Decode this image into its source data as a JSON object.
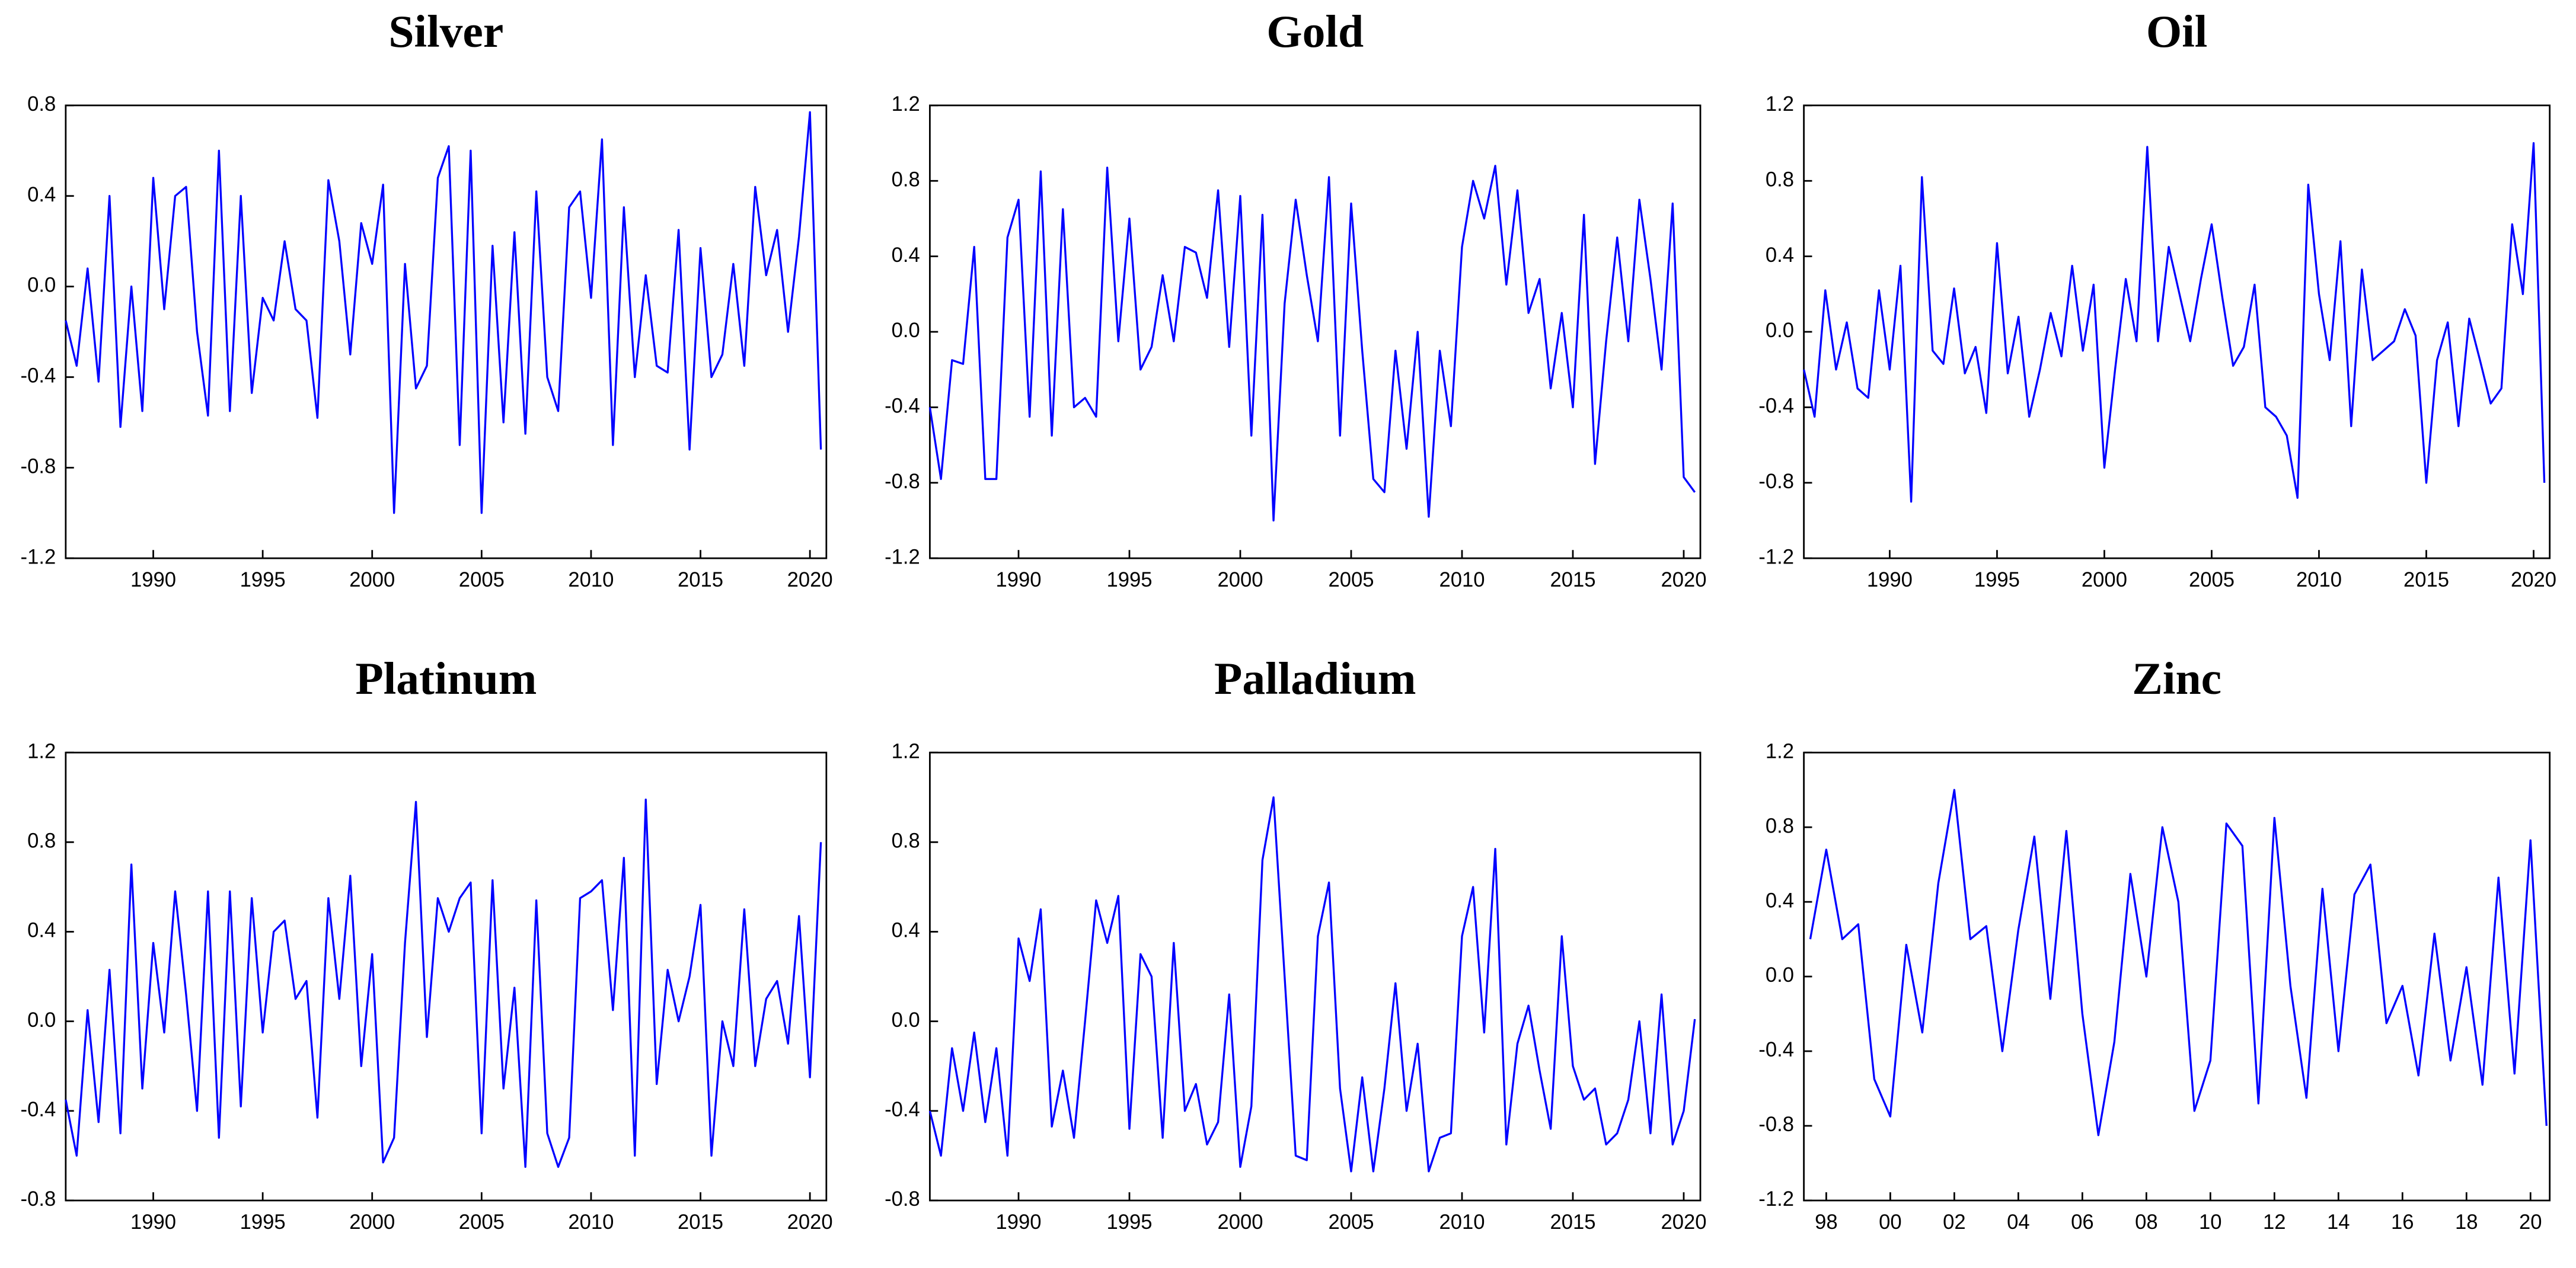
{
  "chart_data": [
    {
      "type": "line",
      "title": "Silver",
      "color": "#0000ff",
      "x": [
        1986,
        1986.5,
        1987,
        1987.5,
        1988,
        1988.5,
        1989,
        1989.5,
        1990,
        1990.5,
        1991,
        1991.5,
        1992,
        1992.5,
        1993,
        1993.5,
        1994,
        1994.5,
        1995,
        1995.5,
        1996,
        1996.5,
        1997,
        1997.5,
        1998,
        1998.5,
        1999,
        1999.5,
        2000,
        2000.5,
        2001,
        2001.5,
        2002,
        2002.5,
        2003,
        2003.5,
        2004,
        2004.5,
        2005,
        2005.5,
        2006,
        2006.5,
        2007,
        2007.5,
        2008,
        2008.5,
        2009,
        2009.5,
        2010,
        2010.5,
        2011,
        2011.5,
        2012,
        2012.5,
        2013,
        2013.5,
        2014,
        2014.5,
        2015,
        2015.5,
        2016,
        2016.5,
        2017,
        2017.5,
        2018,
        2018.5,
        2019,
        2019.5,
        2020,
        2020.5
      ],
      "values": [
        -0.15,
        -0.35,
        0.08,
        -0.42,
        0.4,
        -0.62,
        0.0,
        -0.55,
        0.48,
        -0.1,
        0.4,
        0.44,
        -0.2,
        -0.57,
        0.6,
        -0.55,
        0.4,
        -0.47,
        -0.05,
        -0.15,
        0.2,
        -0.1,
        -0.15,
        -0.58,
        0.47,
        0.2,
        -0.3,
        0.28,
        0.1,
        0.45,
        -1.0,
        0.1,
        -0.45,
        -0.35,
        0.48,
        0.62,
        -0.7,
        0.6,
        -1.0,
        0.18,
        -0.6,
        0.24,
        -0.65,
        0.42,
        -0.4,
        -0.55,
        0.35,
        0.42,
        -0.05,
        0.65,
        -0.7,
        0.35,
        -0.4,
        0.05,
        -0.35,
        -0.38,
        0.25,
        -0.72,
        0.17,
        -0.4,
        -0.3,
        0.1,
        -0.35,
        0.44,
        0.05,
        0.25,
        -0.2,
        0.22,
        0.77,
        -0.72
      ],
      "xlim": [
        1986,
        2020.75
      ],
      "xticks": [
        1990,
        1995,
        2000,
        2005,
        2010,
        2015,
        2020
      ],
      "ylim": [
        -1.2,
        0.8
      ],
      "yticks": [
        -1.2,
        -0.8,
        -0.4,
        {
          "value": 0,
          "label": "0.0"
        },
        0.4,
        0.8
      ]
    },
    {
      "type": "line",
      "title": "Gold",
      "color": "#0000ff",
      "x": [
        1986,
        1986.5,
        1987,
        1987.5,
        1988,
        1988.5,
        1989,
        1989.5,
        1990,
        1990.5,
        1991,
        1991.5,
        1992,
        1992.5,
        1993,
        1993.5,
        1994,
        1994.5,
        1995,
        1995.5,
        1996,
        1996.5,
        1997,
        1997.5,
        1998,
        1998.5,
        1999,
        1999.5,
        2000,
        2000.5,
        2001,
        2001.5,
        2002,
        2002.5,
        2003,
        2003.5,
        2004,
        2004.5,
        2005,
        2005.5,
        2006,
        2006.5,
        2007,
        2007.5,
        2008,
        2008.5,
        2009,
        2009.5,
        2010,
        2010.5,
        2011,
        2011.5,
        2012,
        2012.5,
        2013,
        2013.5,
        2014,
        2014.5,
        2015,
        2015.5,
        2016,
        2016.5,
        2017,
        2017.5,
        2018,
        2018.5,
        2019,
        2019.5,
        2020,
        2020.5
      ],
      "values": [
        -0.4,
        -0.78,
        -0.15,
        -0.17,
        0.45,
        -0.78,
        -0.78,
        0.5,
        0.7,
        -0.45,
        0.85,
        -0.55,
        0.65,
        -0.4,
        -0.35,
        -0.45,
        0.87,
        -0.05,
        0.6,
        -0.2,
        -0.08,
        0.3,
        -0.05,
        0.45,
        0.42,
        0.18,
        0.75,
        -0.08,
        0.72,
        -0.55,
        0.62,
        -1.0,
        0.15,
        0.7,
        0.3,
        -0.05,
        0.82,
        -0.55,
        0.68,
        -0.1,
        -0.78,
        -0.85,
        -0.1,
        -0.62,
        0.0,
        -0.98,
        -0.1,
        -0.5,
        0.45,
        0.8,
        0.6,
        0.88,
        0.25,
        0.75,
        0.1,
        0.28,
        -0.3,
        0.1,
        -0.4,
        0.62,
        -0.7,
        -0.05,
        0.5,
        -0.05,
        0.7,
        0.28,
        -0.2,
        0.68,
        -0.77,
        -0.85
      ],
      "xlim": [
        1986,
        2020.75
      ],
      "xticks": [
        1990,
        1995,
        2000,
        2005,
        2010,
        2015,
        2020
      ],
      "ylim": [
        -1.2,
        1.2
      ],
      "yticks": [
        -1.2,
        -0.8,
        -0.4,
        {
          "value": 0,
          "label": "0.0"
        },
        0.4,
        0.8,
        1.2
      ]
    },
    {
      "type": "line",
      "title": "Oil",
      "color": "#0000ff",
      "x": [
        1986,
        1986.5,
        1987,
        1987.5,
        1988,
        1988.5,
        1989,
        1989.5,
        1990,
        1990.5,
        1991,
        1991.5,
        1992,
        1992.5,
        1993,
        1993.5,
        1994,
        1994.5,
        1995,
        1995.5,
        1996,
        1996.5,
        1997,
        1997.5,
        1998,
        1998.5,
        1999,
        1999.5,
        2000,
        2000.5,
        2001,
        2001.5,
        2002,
        2002.5,
        2003,
        2003.5,
        2004,
        2004.5,
        2005,
        2005.5,
        2006,
        2006.5,
        2007,
        2007.5,
        2008,
        2008.5,
        2009,
        2009.5,
        2010,
        2010.5,
        2011,
        2011.5,
        2012,
        2012.5,
        2013,
        2013.5,
        2014,
        2014.5,
        2015,
        2015.5,
        2016,
        2016.5,
        2017,
        2017.5,
        2018,
        2018.5,
        2019,
        2019.5,
        2020,
        2020.5
      ],
      "values": [
        -0.2,
        -0.45,
        0.22,
        -0.2,
        0.05,
        -0.3,
        -0.35,
        0.22,
        -0.2,
        0.35,
        -0.9,
        0.82,
        -0.1,
        -0.17,
        0.23,
        -0.22,
        -0.08,
        -0.43,
        0.47,
        -0.22,
        0.08,
        -0.45,
        -0.2,
        0.1,
        -0.13,
        0.35,
        -0.1,
        0.25,
        -0.72,
        -0.2,
        0.28,
        -0.05,
        0.98,
        -0.05,
        0.45,
        0.2,
        -0.05,
        0.28,
        0.57,
        0.18,
        -0.18,
        -0.08,
        0.25,
        -0.4,
        -0.45,
        -0.55,
        -0.88,
        0.78,
        0.2,
        -0.15,
        0.48,
        -0.5,
        0.33,
        -0.15,
        -0.1,
        -0.05,
        0.12,
        -0.02,
        -0.8,
        -0.15,
        0.05,
        -0.5,
        0.07,
        -0.15,
        -0.38,
        -0.3,
        0.57,
        0.2,
        1.0,
        -0.8
      ],
      "xlim": [
        1986,
        2020.75
      ],
      "xticks": [
        1990,
        1995,
        2000,
        2005,
        2010,
        2015,
        2020
      ],
      "ylim": [
        -1.2,
        1.2
      ],
      "yticks": [
        -1.2,
        -0.8,
        -0.4,
        {
          "value": 0,
          "label": "0.0"
        },
        0.4,
        0.8,
        1.2
      ]
    },
    {
      "type": "line",
      "title": "Platinum",
      "color": "#0000ff",
      "x": [
        1986,
        1986.5,
        1987,
        1987.5,
        1988,
        1988.5,
        1989,
        1989.5,
        1990,
        1990.5,
        1991,
        1991.5,
        1992,
        1992.5,
        1993,
        1993.5,
        1994,
        1994.5,
        1995,
        1995.5,
        1996,
        1996.5,
        1997,
        1997.5,
        1998,
        1998.5,
        1999,
        1999.5,
        2000,
        2000.5,
        2001,
        2001.5,
        2002,
        2002.5,
        2003,
        2003.5,
        2004,
        2004.5,
        2005,
        2005.5,
        2006,
        2006.5,
        2007,
        2007.5,
        2008,
        2008.5,
        2009,
        2009.5,
        2010,
        2010.5,
        2011,
        2011.5,
        2012,
        2012.5,
        2013,
        2013.5,
        2014,
        2014.5,
        2015,
        2015.5,
        2016,
        2016.5,
        2017,
        2017.5,
        2018,
        2018.5,
        2019,
        2019.5,
        2020,
        2020.5
      ],
      "values": [
        -0.35,
        -0.6,
        0.05,
        -0.45,
        0.23,
        -0.5,
        0.7,
        -0.3,
        0.35,
        -0.05,
        0.58,
        0.12,
        -0.4,
        0.58,
        -0.52,
        0.58,
        -0.38,
        0.55,
        -0.05,
        0.4,
        0.45,
        0.1,
        0.18,
        -0.43,
        0.55,
        0.1,
        0.65,
        -0.2,
        0.3,
        -0.63,
        -0.52,
        0.35,
        0.98,
        -0.07,
        0.55,
        0.4,
        0.55,
        0.62,
        -0.5,
        0.63,
        -0.3,
        0.15,
        -0.65,
        0.54,
        -0.5,
        -0.65,
        -0.52,
        0.55,
        0.58,
        0.63,
        0.05,
        0.73,
        -0.6,
        0.99,
        -0.28,
        0.23,
        0.0,
        0.2,
        0.52,
        -0.6,
        0.0,
        -0.2,
        0.5,
        -0.2,
        0.1,
        0.18,
        -0.1,
        0.47,
        -0.25,
        0.8
      ],
      "xlim": [
        1986,
        2020.75
      ],
      "xticks": [
        1990,
        1995,
        2000,
        2005,
        2010,
        2015,
        2020
      ],
      "ylim": [
        -0.8,
        1.2
      ],
      "yticks": [
        -0.8,
        -0.4,
        {
          "value": 0,
          "label": "0.0"
        },
        0.4,
        0.8,
        1.2
      ]
    },
    {
      "type": "line",
      "title": "Palladium",
      "color": "#0000ff",
      "x": [
        1986,
        1986.5,
        1987,
        1987.5,
        1988,
        1988.5,
        1989,
        1989.5,
        1990,
        1990.5,
        1991,
        1991.5,
        1992,
        1992.5,
        1993,
        1993.5,
        1994,
        1994.5,
        1995,
        1995.5,
        1996,
        1996.5,
        1997,
        1997.5,
        1998,
        1998.5,
        1999,
        1999.5,
        2000,
        2000.5,
        2001,
        2001.5,
        2002,
        2002.5,
        2003,
        2003.5,
        2004,
        2004.5,
        2005,
        2005.5,
        2006,
        2006.5,
        2007,
        2007.5,
        2008,
        2008.5,
        2009,
        2009.5,
        2010,
        2010.5,
        2011,
        2011.5,
        2012,
        2012.5,
        2013,
        2013.5,
        2014,
        2014.5,
        2015,
        2015.5,
        2016,
        2016.5,
        2017,
        2017.5,
        2018,
        2018.5,
        2019,
        2019.5,
        2020,
        2020.5
      ],
      "values": [
        -0.4,
        -0.6,
        -0.12,
        -0.4,
        -0.05,
        -0.45,
        -0.12,
        -0.6,
        0.37,
        0.18,
        0.5,
        -0.47,
        -0.22,
        -0.52,
        0.0,
        0.54,
        0.35,
        0.56,
        -0.48,
        0.3,
        0.2,
        -0.52,
        0.35,
        -0.4,
        -0.28,
        -0.55,
        -0.45,
        0.12,
        -0.65,
        -0.38,
        0.72,
        1.0,
        0.2,
        -0.6,
        -0.62,
        0.38,
        0.62,
        -0.3,
        -0.67,
        -0.25,
        -0.67,
        -0.3,
        0.17,
        -0.4,
        -0.1,
        -0.67,
        -0.52,
        -0.5,
        0.38,
        0.6,
        -0.05,
        0.77,
        -0.55,
        -0.1,
        0.07,
        -0.22,
        -0.48,
        0.38,
        -0.2,
        -0.35,
        -0.3,
        -0.55,
        -0.5,
        -0.35,
        0.0,
        -0.5,
        0.12,
        -0.55,
        -0.4,
        0.01
      ],
      "xlim": [
        1986,
        2020.75
      ],
      "xticks": [
        1990,
        1995,
        2000,
        2005,
        2010,
        2015,
        2020
      ],
      "ylim": [
        -0.8,
        1.2
      ],
      "yticks": [
        -0.8,
        -0.4,
        {
          "value": 0,
          "label": "0.0"
        },
        0.4,
        0.8,
        1.2
      ]
    },
    {
      "type": "line",
      "title": "Zinc",
      "color": "#0000ff",
      "x": [
        1997.5,
        1998,
        1998.5,
        1999,
        1999.5,
        2000,
        2000.5,
        2001,
        2001.5,
        2002,
        2002.5,
        2003,
        2003.5,
        2004,
        2004.5,
        2005,
        2005.5,
        2006,
        2006.5,
        2007,
        2007.5,
        2008,
        2008.5,
        2009,
        2009.5,
        2010,
        2010.5,
        2011,
        2011.5,
        2012,
        2012.5,
        2013,
        2013.5,
        2014,
        2014.5,
        2015,
        2015.5,
        2016,
        2016.5,
        2017,
        2017.5,
        2018,
        2018.5,
        2019,
        2019.5,
        2020,
        2020.5
      ],
      "values": [
        0.2,
        0.68,
        0.2,
        0.28,
        -0.55,
        -0.75,
        0.17,
        -0.3,
        0.5,
        1.0,
        0.2,
        0.27,
        -0.4,
        0.25,
        0.75,
        -0.12,
        0.78,
        -0.2,
        -0.85,
        -0.35,
        0.55,
        0.0,
        0.8,
        0.4,
        -0.72,
        -0.45,
        0.82,
        0.7,
        -0.68,
        0.85,
        -0.05,
        -0.65,
        0.47,
        -0.4,
        0.44,
        0.6,
        -0.25,
        -0.05,
        -0.53,
        0.23,
        -0.45,
        0.05,
        -0.58,
        0.53,
        -0.52,
        0.73,
        -0.8
      ],
      "xlim": [
        1997.3,
        2020.6
      ],
      "xticks": [
        {
          "value": 1998,
          "label": "98"
        },
        {
          "value": 2000,
          "label": "00"
        },
        {
          "value": 2002,
          "label": "02"
        },
        {
          "value": 2004,
          "label": "04"
        },
        {
          "value": 2006,
          "label": "06"
        },
        {
          "value": 2008,
          "label": "08"
        },
        {
          "value": 2010,
          "label": "10"
        },
        {
          "value": 2012,
          "label": "12"
        },
        {
          "value": 2014,
          "label": "14"
        },
        {
          "value": 2016,
          "label": "16"
        },
        {
          "value": 2018,
          "label": "18"
        },
        {
          "value": 2020,
          "label": "20"
        }
      ],
      "ylim": [
        -1.2,
        1.2
      ],
      "yticks": [
        -1.2,
        -0.8,
        -0.4,
        {
          "value": 0,
          "label": "0.0"
        },
        0.4,
        0.8,
        1.2
      ]
    }
  ]
}
